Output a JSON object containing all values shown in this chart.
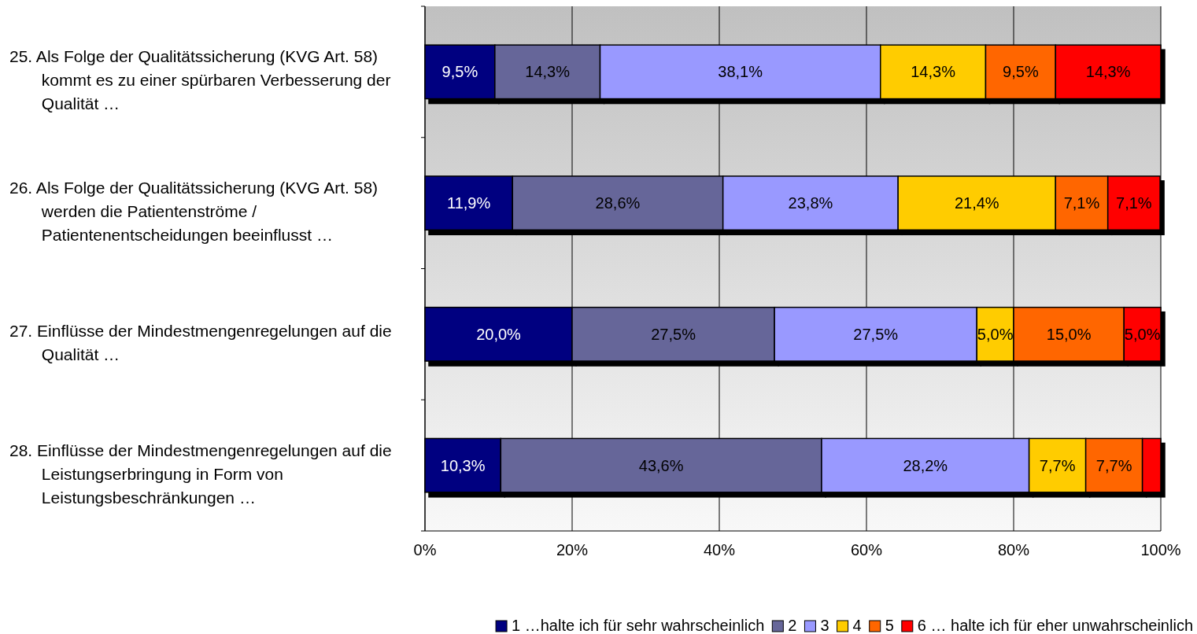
{
  "chart_data": {
    "type": "bar",
    "orientation": "horizontal",
    "stacked": true,
    "categories": [
      "25.  Als Folge der Qualitätssicherung (KVG Art. 58) kommt es zu einer spürbaren Verbesserung der Qualität …",
      "26.  Als Folge der Qualitätssicherung (KVG Art. 58) werden die Patientenströme / Patientenentscheidungen beeinflusst …",
      "27.  Einflüsse der Mindestmengenregelungen auf die Qualität …",
      "28.  Einflüsse der Mindestmengenregelungen auf die Leistungserbringung in Form von Leistungsbeschränkungen …"
    ],
    "series": [
      {
        "name": "1 …halte ich für sehr wahrscheinlich",
        "color": "#000080",
        "values": [
          9.5,
          11.9,
          20.0,
          10.3
        ],
        "value_labels": [
          "9,5%",
          "11,9%",
          "20,0%",
          "10,3%"
        ]
      },
      {
        "name": "2",
        "color": "#666699",
        "values": [
          14.3,
          28.6,
          27.5,
          43.6
        ],
        "value_labels": [
          "14,3%",
          "28,6%",
          "27,5%",
          "43,6%"
        ]
      },
      {
        "name": "3",
        "color": "#9999ff",
        "values": [
          38.1,
          23.8,
          27.5,
          28.2
        ],
        "value_labels": [
          "38,1%",
          "23,8%",
          "27,5%",
          "28,2%"
        ]
      },
      {
        "name": "4",
        "color": "#ffcc00",
        "values": [
          14.3,
          21.4,
          5.0,
          7.7
        ],
        "value_labels": [
          "14,3%",
          "21,4%",
          "5,0%",
          "7,7%"
        ]
      },
      {
        "name": "5",
        "color": "#ff6600",
        "values": [
          9.5,
          7.1,
          15.0,
          7.7
        ],
        "value_labels": [
          "9,5%",
          "7,1%",
          "15,0%",
          "7,7%"
        ]
      },
      {
        "name": "6 … halte ich für eher unwahrscheinlich",
        "color": "#ff0000",
        "values": [
          14.3,
          7.1,
          5.0,
          2.5
        ],
        "value_labels": [
          "14,3%",
          "7,1%",
          "5,0%",
          null
        ]
      }
    ],
    "xlim": [
      0,
      100
    ],
    "xticks": [
      {
        "value": 0,
        "label": "0%"
      },
      {
        "value": 20,
        "label": "20%"
      },
      {
        "value": 40,
        "label": "40%"
      },
      {
        "value": 60,
        "label": "60%"
      },
      {
        "value": 80,
        "label": "80%"
      },
      {
        "value": 100,
        "label": "100%"
      }
    ],
    "grid": "x",
    "legend": "bottom"
  }
}
